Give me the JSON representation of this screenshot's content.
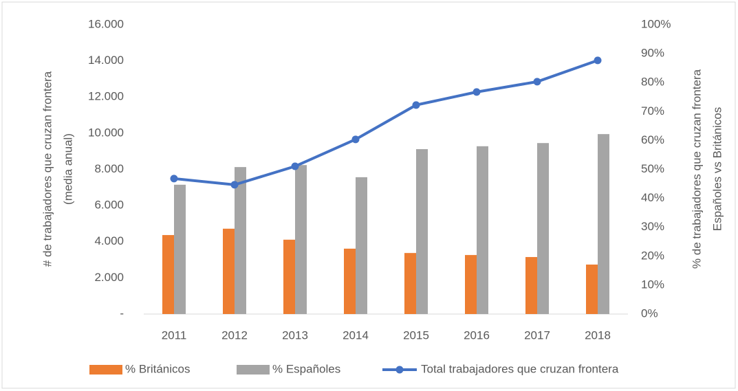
{
  "chart_data": {
    "type": "bar-line",
    "categories": [
      "2011",
      "2012",
      "2013",
      "2014",
      "2015",
      "2016",
      "2017",
      "2018"
    ],
    "series": [
      {
        "name": "% Británicos",
        "color": "#ed7d31",
        "type": "bar",
        "axis": "y2",
        "values": [
          27.3,
          29.5,
          25.7,
          22.6,
          21.1,
          20.4,
          19.7,
          17.1
        ]
      },
      {
        "name": "% Españoles",
        "color": "#a5a5a5",
        "type": "bar",
        "axis": "y2",
        "values": [
          44.7,
          50.8,
          51.5,
          47.3,
          57,
          58,
          59.1,
          62.2
        ]
      },
      {
        "name": "Total trabajadores que cruzan frontera",
        "color": "#4472c4",
        "type": "line",
        "values": [
          7490,
          7150,
          8170,
          9660,
          11560,
          12280,
          12850,
          14030
        ]
      }
    ],
    "ylim": [
      0,
      16000
    ],
    "yticks": [
      {
        "value": 0,
        "label": "-"
      },
      {
        "value": 2000,
        "label": "2.000"
      },
      {
        "value": 4000,
        "label": "4.000"
      },
      {
        "value": 6000,
        "label": "6.000"
      },
      {
        "value": 8000,
        "label": "8.000"
      },
      {
        "value": 10000,
        "label": "10.000"
      },
      {
        "value": 12000,
        "label": "12.000"
      },
      {
        "value": 14000,
        "label": "14.000"
      },
      {
        "value": 16000,
        "label": "16.000"
      }
    ],
    "y2lim": [
      0,
      100
    ],
    "y2ticks": [
      {
        "value": 0,
        "label": "0%"
      },
      {
        "value": 10,
        "label": "10%"
      },
      {
        "value": 20,
        "label": "20%"
      },
      {
        "value": 30,
        "label": "30%"
      },
      {
        "value": 40,
        "label": "40%"
      },
      {
        "value": 50,
        "label": "50%"
      },
      {
        "value": 60,
        "label": "60%"
      },
      {
        "value": 70,
        "label": "70%"
      },
      {
        "value": 80,
        "label": "80%"
      },
      {
        "value": 90,
        "label": "90%"
      },
      {
        "value": 100,
        "label": "100%"
      }
    ],
    "y_label": [
      "# de trabajadores  que cruzan frontera",
      "(media anual)"
    ],
    "y2_label": [
      "% de trabajadores que cruzan frontera",
      "Españoles vs Británicos"
    ],
    "legend": "bottom"
  }
}
